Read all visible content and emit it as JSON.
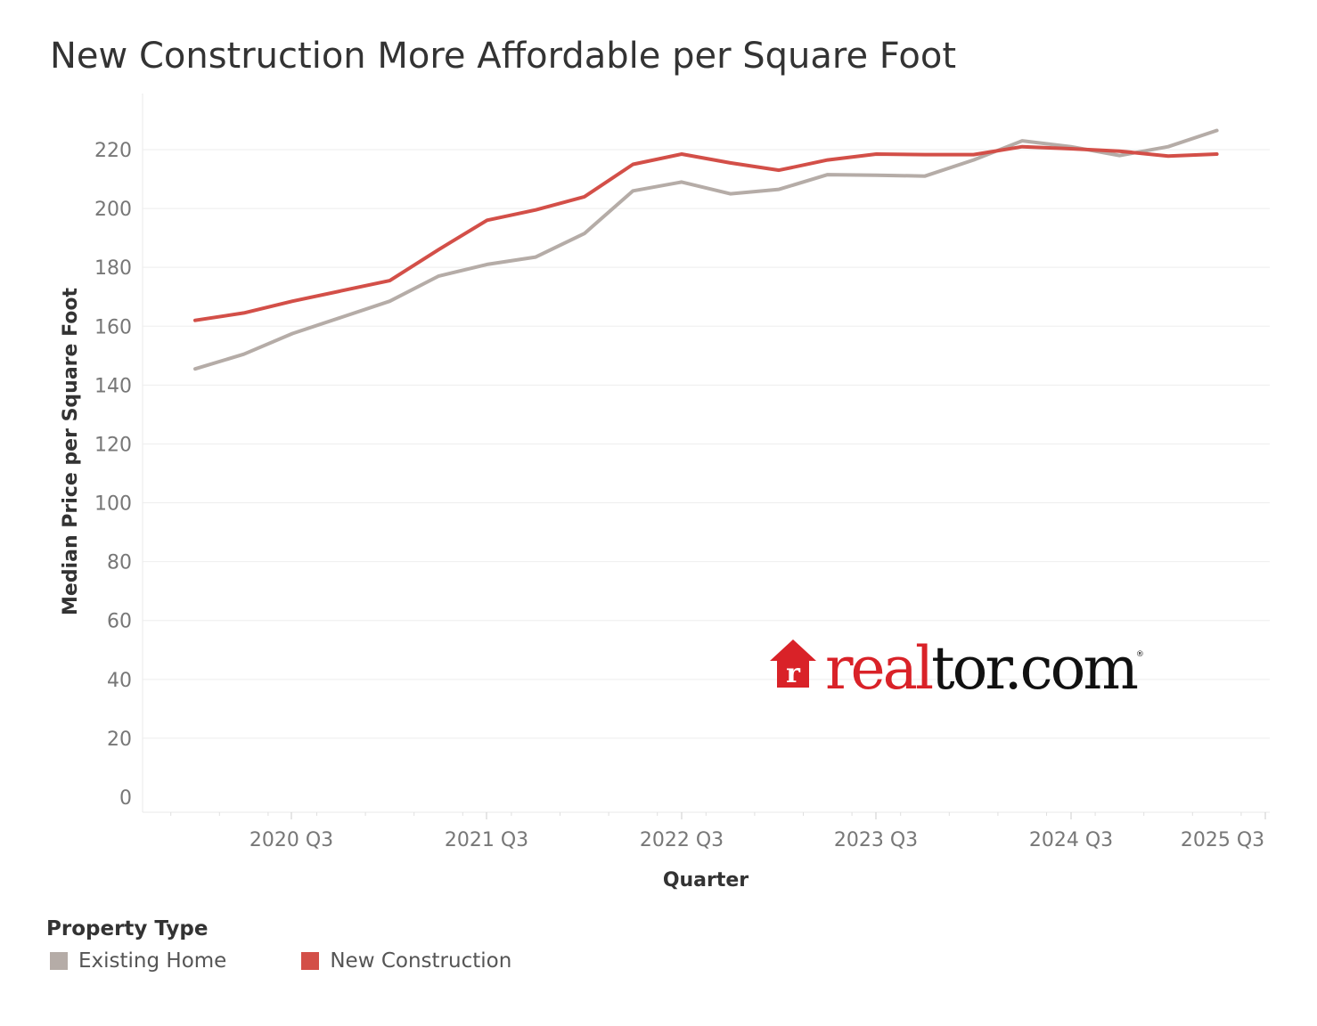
{
  "chart_data": {
    "type": "line",
    "title": "New Construction More Affordable per Square Foot",
    "xlabel": "Quarter",
    "ylabel": "Median Price per Square Foot",
    "ylim": [
      0,
      230
    ],
    "yticks": [
      "0",
      "20",
      "40",
      "60",
      "80",
      "100",
      "120",
      "140",
      "160",
      "180",
      "200",
      "220"
    ],
    "xticks": [
      "2020 Q3",
      "2021 Q3",
      "2022 Q3",
      "2023 Q3",
      "2024 Q3",
      "2025 Q3"
    ],
    "categories": [
      "2020 Q1",
      "2020 Q2",
      "2020 Q3",
      "2020 Q4",
      "2021 Q1",
      "2021 Q2",
      "2021 Q3",
      "2021 Q4",
      "2022 Q1",
      "2022 Q2",
      "2022 Q3",
      "2022 Q4",
      "2023 Q1",
      "2023 Q2",
      "2023 Q3",
      "2023 Q4",
      "2024 Q1",
      "2024 Q2",
      "2024 Q3",
      "2024 Q4",
      "2025 Q1",
      "2025 Q2"
    ],
    "grid": true,
    "legend_position": "bottom-left",
    "series": [
      {
        "name": "Existing Home",
        "color": "#b5aca7",
        "values": [
          145.5,
          150.5,
          157.5,
          163,
          168.5,
          177,
          181,
          183.5,
          191.5,
          206,
          209,
          205,
          206.5,
          211.5,
          211.3,
          211,
          216.5,
          223,
          221,
          218,
          221,
          226.5
        ]
      },
      {
        "name": "New Construction",
        "color": "#d34f48",
        "values": [
          162,
          164.5,
          168.5,
          172,
          175.5,
          186,
          196,
          199.5,
          204,
          215,
          218.5,
          215.5,
          213,
          216.5,
          218.5,
          218.3,
          218.3,
          221,
          220.3,
          219.5,
          217.8,
          218.5
        ]
      }
    ]
  },
  "legend": {
    "title": "Property Type",
    "items": [
      {
        "label": "Existing Home",
        "color": "#b5aca7"
      },
      {
        "label": "New Construction",
        "color": "#d34f48"
      }
    ]
  },
  "logo": {
    "brand_red": "real",
    "brand_black": "tor.com",
    "icon": "house-r-icon"
  }
}
